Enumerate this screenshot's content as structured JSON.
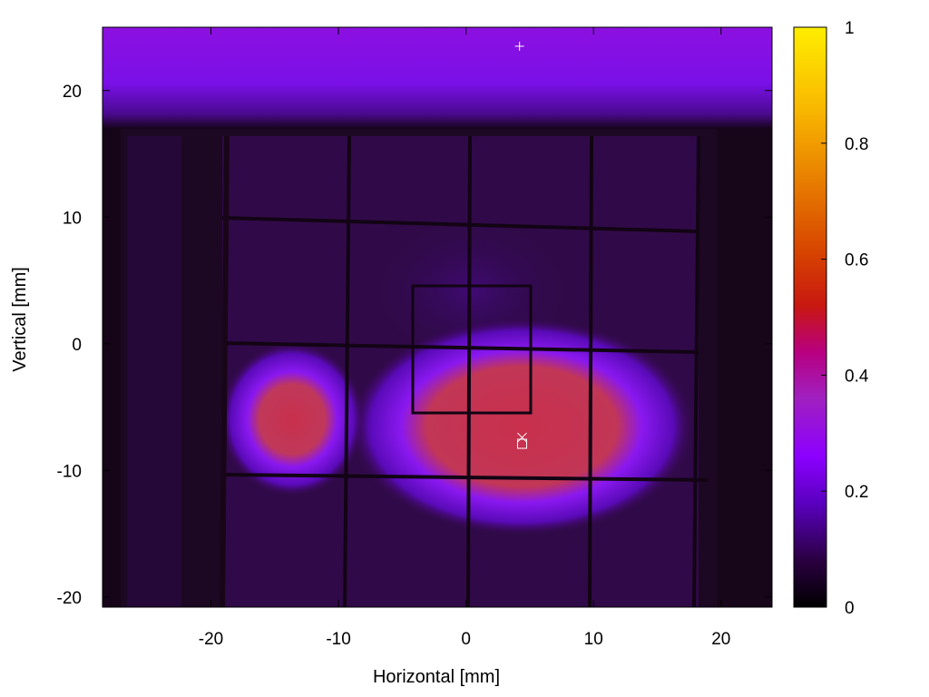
{
  "chart_data": {
    "type": "heatmap",
    "xlabel": "Horizontal [mm]",
    "ylabel": "Vertical [mm]",
    "xlim": [
      -28.5,
      24
    ],
    "ylim": [
      -20.8,
      25
    ],
    "x_ticks": [
      -20,
      -10,
      0,
      10,
      20
    ],
    "y_ticks": [
      -20,
      -10,
      0,
      10,
      20
    ],
    "colorbar": {
      "range": [
        0,
        1
      ],
      "ticks": [
        0,
        0.2,
        0.4,
        0.6,
        0.8,
        1
      ],
      "colormap": "gnuplot-hot (black-purple-red-orange-yellow)",
      "colors": [
        "#000000",
        "#2a0040",
        "#5a00c0",
        "#8c00ff",
        "#a020c0",
        "#b80080",
        "#c81810",
        "#d84800",
        "#e88000",
        "#f8b800",
        "#ffee00"
      ]
    },
    "regions": [
      {
        "name": "background",
        "value": 0.06
      },
      {
        "name": "top-band",
        "y_range": [
          17.5,
          25
        ],
        "value": 0.3
      },
      {
        "name": "left-bright-blob",
        "x_center": -13.5,
        "y_center": -7.5,
        "value": 0.44
      },
      {
        "name": "central-bright-blob",
        "x_center": 4,
        "y_center": -6.5,
        "value": 0.44
      }
    ],
    "markers": [
      {
        "symbol": "+",
        "x": 4.2,
        "y": 23.5
      },
      {
        "symbol": "×",
        "x": 4.4,
        "y": -7.4
      },
      {
        "symbol": "□",
        "x": 4.4,
        "y": -7.9
      }
    ]
  }
}
